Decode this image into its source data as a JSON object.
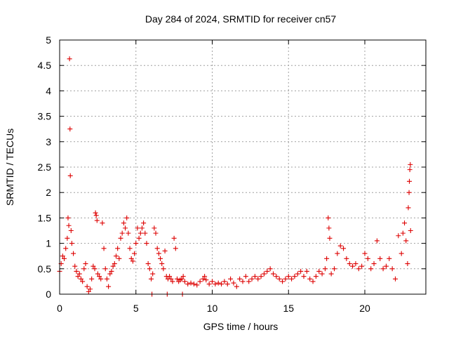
{
  "chart_data": {
    "type": "scatter",
    "title": "Day 284 of 2024, SRMTID for receiver cn57",
    "xlabel": "GPS time / hours",
    "ylabel": "SRMTID / TECUs",
    "xlim": [
      0,
      24
    ],
    "ylim": [
      0,
      5
    ],
    "x_ticks": [
      0,
      5,
      10,
      15,
      20
    ],
    "x_tick_labels": [
      "0",
      "5",
      "10",
      "15",
      "20"
    ],
    "y_ticks": [
      0,
      0.5,
      1,
      1.5,
      2,
      2.5,
      3,
      3.5,
      4,
      4.5,
      5
    ],
    "y_tick_labels": [
      "0",
      "0.5",
      "1",
      "1.5",
      "2",
      "2.5",
      "3",
      "3.5",
      "4",
      "4.5",
      "5"
    ],
    "grid": true,
    "marker": "+",
    "color": "#dd0000",
    "series": [
      {
        "name": "SRMTID",
        "points": [
          [
            0.0,
            0.45
          ],
          [
            0.1,
            0.6
          ],
          [
            0.2,
            0.75
          ],
          [
            0.3,
            0.7
          ],
          [
            0.4,
            0.9
          ],
          [
            0.5,
            1.1
          ],
          [
            0.55,
            1.5
          ],
          [
            0.6,
            1.35
          ],
          [
            0.65,
            4.63
          ],
          [
            0.68,
            3.25
          ],
          [
            0.7,
            2.33
          ],
          [
            0.75,
            1.25
          ],
          [
            0.8,
            1.0
          ],
          [
            0.9,
            0.8
          ],
          [
            1.0,
            0.55
          ],
          [
            1.1,
            0.45
          ],
          [
            1.2,
            0.35
          ],
          [
            1.3,
            0.4
          ],
          [
            1.4,
            0.3
          ],
          [
            1.5,
            0.25
          ],
          [
            1.6,
            0.5
          ],
          [
            1.7,
            0.6
          ],
          [
            1.8,
            0.15
          ],
          [
            1.9,
            0.05
          ],
          [
            2.0,
            0.1
          ],
          [
            2.1,
            0.3
          ],
          [
            2.2,
            0.55
          ],
          [
            2.3,
            0.5
          ],
          [
            2.35,
            1.6
          ],
          [
            2.4,
            1.55
          ],
          [
            2.45,
            1.45
          ],
          [
            2.5,
            0.4
          ],
          [
            2.6,
            0.35
          ],
          [
            2.7,
            0.3
          ],
          [
            2.8,
            1.4
          ],
          [
            2.9,
            0.9
          ],
          [
            3.0,
            0.5
          ],
          [
            3.1,
            0.3
          ],
          [
            3.2,
            0.15
          ],
          [
            3.3,
            0.4
          ],
          [
            3.4,
            0.45
          ],
          [
            3.5,
            0.55
          ],
          [
            3.6,
            0.6
          ],
          [
            3.7,
            0.75
          ],
          [
            3.8,
            0.9
          ],
          [
            3.9,
            0.7
          ],
          [
            4.0,
            1.1
          ],
          [
            4.1,
            1.2
          ],
          [
            4.2,
            1.4
          ],
          [
            4.3,
            1.3
          ],
          [
            4.4,
            1.5
          ],
          [
            4.5,
            1.2
          ],
          [
            4.6,
            0.9
          ],
          [
            4.7,
            0.7
          ],
          [
            4.8,
            0.65
          ],
          [
            4.9,
            0.8
          ],
          [
            5.0,
            1.0
          ],
          [
            5.1,
            1.3
          ],
          [
            5.2,
            1.1
          ],
          [
            5.3,
            1.2
          ],
          [
            5.4,
            1.3
          ],
          [
            5.5,
            1.4
          ],
          [
            5.6,
            1.2
          ],
          [
            5.7,
            1.0
          ],
          [
            5.8,
            0.6
          ],
          [
            5.9,
            0.5
          ],
          [
            6.0,
            0.3
          ],
          [
            6.05,
            0.0
          ],
          [
            6.1,
            0.4
          ],
          [
            6.2,
            1.3
          ],
          [
            6.3,
            1.2
          ],
          [
            6.4,
            0.9
          ],
          [
            6.5,
            0.8
          ],
          [
            6.6,
            0.7
          ],
          [
            6.7,
            0.6
          ],
          [
            6.8,
            0.5
          ],
          [
            6.9,
            0.85
          ],
          [
            7.0,
            0.35
          ],
          [
            7.05,
            0.0
          ],
          [
            7.1,
            0.3
          ],
          [
            7.2,
            0.35
          ],
          [
            7.3,
            0.3
          ],
          [
            7.4,
            0.25
          ],
          [
            7.5,
            1.1
          ],
          [
            7.6,
            0.9
          ],
          [
            7.7,
            0.3
          ],
          [
            7.8,
            0.25
          ],
          [
            7.9,
            0.28
          ],
          [
            8.0,
            0.3
          ],
          [
            8.05,
            0.0
          ],
          [
            8.1,
            0.35
          ],
          [
            8.2,
            0.25
          ],
          [
            8.4,
            0.2
          ],
          [
            8.6,
            0.22
          ],
          [
            8.8,
            0.2
          ],
          [
            9.0,
            0.18
          ],
          [
            9.2,
            0.25
          ],
          [
            9.4,
            0.3
          ],
          [
            9.5,
            0.35
          ],
          [
            9.6,
            0.28
          ],
          [
            9.8,
            0.2
          ],
          [
            10.0,
            0.25
          ],
          [
            10.2,
            0.2
          ],
          [
            10.4,
            0.22
          ],
          [
            10.6,
            0.2
          ],
          [
            10.8,
            0.25
          ],
          [
            11.0,
            0.2
          ],
          [
            11.2,
            0.3
          ],
          [
            11.4,
            0.22
          ],
          [
            11.6,
            0.15
          ],
          [
            11.8,
            0.3
          ],
          [
            12.0,
            0.25
          ],
          [
            12.2,
            0.35
          ],
          [
            12.4,
            0.25
          ],
          [
            12.6,
            0.3
          ],
          [
            12.8,
            0.35
          ],
          [
            13.0,
            0.3
          ],
          [
            13.2,
            0.35
          ],
          [
            13.4,
            0.4
          ],
          [
            13.6,
            0.45
          ],
          [
            13.8,
            0.5
          ],
          [
            14.0,
            0.4
          ],
          [
            14.2,
            0.35
          ],
          [
            14.4,
            0.3
          ],
          [
            14.6,
            0.25
          ],
          [
            14.8,
            0.3
          ],
          [
            15.0,
            0.35
          ],
          [
            15.2,
            0.3
          ],
          [
            15.4,
            0.35
          ],
          [
            15.6,
            0.4
          ],
          [
            15.8,
            0.45
          ],
          [
            16.0,
            0.35
          ],
          [
            16.2,
            0.45
          ],
          [
            16.4,
            0.3
          ],
          [
            16.6,
            0.25
          ],
          [
            16.8,
            0.35
          ],
          [
            17.0,
            0.45
          ],
          [
            17.2,
            0.4
          ],
          [
            17.4,
            0.5
          ],
          [
            17.5,
            0.7
          ],
          [
            17.6,
            1.5
          ],
          [
            17.65,
            1.3
          ],
          [
            17.7,
            1.1
          ],
          [
            17.8,
            0.4
          ],
          [
            18.0,
            0.5
          ],
          [
            18.2,
            0.8
          ],
          [
            18.4,
            0.95
          ],
          [
            18.6,
            0.9
          ],
          [
            18.8,
            0.7
          ],
          [
            19.0,
            0.6
          ],
          [
            19.2,
            0.55
          ],
          [
            19.4,
            0.6
          ],
          [
            19.6,
            0.5
          ],
          [
            19.8,
            0.55
          ],
          [
            20.0,
            0.8
          ],
          [
            20.2,
            0.7
          ],
          [
            20.4,
            0.5
          ],
          [
            20.6,
            0.6
          ],
          [
            20.8,
            1.05
          ],
          [
            21.0,
            0.7
          ],
          [
            21.2,
            0.5
          ],
          [
            21.4,
            0.55
          ],
          [
            21.6,
            0.7
          ],
          [
            21.8,
            0.5
          ],
          [
            22.0,
            0.3
          ],
          [
            22.2,
            1.15
          ],
          [
            22.4,
            0.8
          ],
          [
            22.5,
            1.2
          ],
          [
            22.6,
            1.4
          ],
          [
            22.7,
            1.05
          ],
          [
            22.8,
            0.6
          ],
          [
            22.85,
            1.7
          ],
          [
            22.9,
            2.0
          ],
          [
            22.92,
            2.22
          ],
          [
            22.95,
            2.45
          ],
          [
            22.98,
            2.55
          ],
          [
            23.0,
            1.25
          ]
        ]
      }
    ]
  }
}
